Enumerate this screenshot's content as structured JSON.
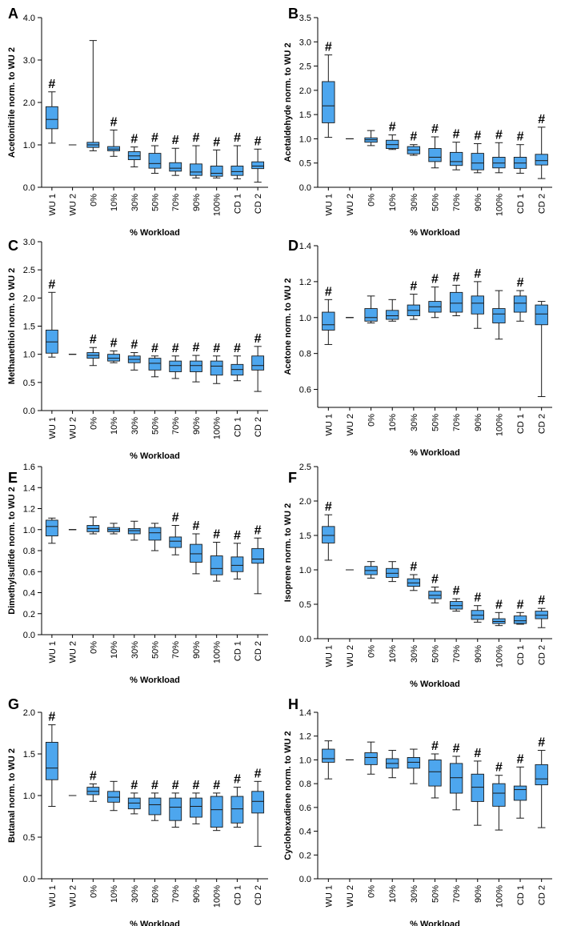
{
  "colors": {
    "box_fill": "#4da6ee",
    "box_stroke": "#1a1a1a",
    "axis": "#000000"
  },
  "chart_data": [
    {
      "panel": "A",
      "type": "box",
      "ylabel": "Acetonitrile norm. to WU 2",
      "xlabel": "% Workload",
      "ylim": [
        0,
        4
      ],
      "yticks": [
        "0.0",
        "1.0",
        "2.0",
        "3.0",
        "4.0"
      ],
      "categories": [
        "WU 1",
        "WU 2",
        "0%",
        "10%",
        "30%",
        "50%",
        "70%",
        "90%",
        "100%",
        "CD 1",
        "CD 2"
      ],
      "boxes": [
        {
          "min": 1.04,
          "q1": 1.38,
          "median": 1.6,
          "q3": 1.9,
          "max": 2.25,
          "sig": true
        },
        {
          "min": 1.0,
          "q1": 1.0,
          "median": 1.0,
          "q3": 1.0,
          "max": 1.0,
          "sig": false
        },
        {
          "min": 0.86,
          "q1": 0.94,
          "median": 1.0,
          "q3": 1.06,
          "max": 3.46,
          "sig": false
        },
        {
          "min": 0.73,
          "q1": 0.86,
          "median": 0.9,
          "q3": 0.96,
          "max": 1.35,
          "sig": true
        },
        {
          "min": 0.48,
          "q1": 0.65,
          "median": 0.74,
          "q3": 0.84,
          "max": 0.95,
          "sig": true
        },
        {
          "min": 0.33,
          "q1": 0.45,
          "median": 0.56,
          "q3": 0.8,
          "max": 0.98,
          "sig": true
        },
        {
          "min": 0.28,
          "q1": 0.38,
          "median": 0.45,
          "q3": 0.58,
          "max": 0.92,
          "sig": true
        },
        {
          "min": 0.22,
          "q1": 0.28,
          "median": 0.36,
          "q3": 0.55,
          "max": 0.98,
          "sig": true
        },
        {
          "min": 0.22,
          "q1": 0.26,
          "median": 0.33,
          "q3": 0.5,
          "max": 0.88,
          "sig": true
        },
        {
          "min": 0.2,
          "q1": 0.28,
          "median": 0.37,
          "q3": 0.5,
          "max": 0.98,
          "sig": true
        },
        {
          "min": 0.12,
          "q1": 0.44,
          "median": 0.5,
          "q3": 0.6,
          "max": 0.9,
          "sig": true
        }
      ]
    },
    {
      "panel": "B",
      "type": "box",
      "ylabel": "Acetaldehyde norm. to WU 2",
      "xlabel": "% Workload",
      "ylim": [
        0,
        3.5
      ],
      "yticks": [
        "0.0",
        "0.5",
        "1.0",
        "1.5",
        "2.0",
        "2.5",
        "3.0",
        "3.5"
      ],
      "categories": [
        "WU 1",
        "WU 2",
        "0%",
        "10%",
        "30%",
        "50%",
        "70%",
        "90%",
        "100%",
        "CD 1",
        "CD 2"
      ],
      "boxes": [
        {
          "min": 1.03,
          "q1": 1.33,
          "median": 1.68,
          "q3": 2.18,
          "max": 2.73,
          "sig": true
        },
        {
          "min": 1.0,
          "q1": 1.0,
          "median": 1.0,
          "q3": 1.0,
          "max": 1.0,
          "sig": false
        },
        {
          "min": 0.86,
          "q1": 0.93,
          "median": 0.98,
          "q3": 1.02,
          "max": 1.17,
          "sig": false
        },
        {
          "min": 0.78,
          "q1": 0.8,
          "median": 0.88,
          "q3": 0.97,
          "max": 1.08,
          "sig": true
        },
        {
          "min": 0.66,
          "q1": 0.69,
          "median": 0.77,
          "q3": 0.84,
          "max": 0.88,
          "sig": true
        },
        {
          "min": 0.4,
          "q1": 0.53,
          "median": 0.62,
          "q3": 0.8,
          "max": 1.04,
          "sig": true
        },
        {
          "min": 0.36,
          "q1": 0.45,
          "median": 0.53,
          "q3": 0.72,
          "max": 0.93,
          "sig": true
        },
        {
          "min": 0.3,
          "q1": 0.36,
          "median": 0.5,
          "q3": 0.7,
          "max": 0.9,
          "sig": true
        },
        {
          "min": 0.3,
          "q1": 0.4,
          "median": 0.5,
          "q3": 0.62,
          "max": 0.92,
          "sig": true
        },
        {
          "min": 0.29,
          "q1": 0.39,
          "median": 0.5,
          "q3": 0.62,
          "max": 0.88,
          "sig": true
        },
        {
          "min": 0.18,
          "q1": 0.46,
          "median": 0.55,
          "q3": 0.68,
          "max": 1.24,
          "sig": true
        }
      ]
    },
    {
      "panel": "C",
      "type": "box",
      "ylabel": "Methanethiol norm. to WU 2",
      "xlabel": "% Workload",
      "ylim": [
        0,
        3
      ],
      "yticks": [
        "0.0",
        "0.5",
        "1.0",
        "1.5",
        "2.0",
        "2.5",
        "3.0"
      ],
      "categories": [
        "WU 1",
        "WU 2",
        "0%",
        "10%",
        "30%",
        "50%",
        "70%",
        "90%",
        "100%",
        "CD 1",
        "CD 2"
      ],
      "boxes": [
        {
          "min": 0.95,
          "q1": 1.02,
          "median": 1.22,
          "q3": 1.43,
          "max": 2.1,
          "sig": true
        },
        {
          "min": 1.0,
          "q1": 1.0,
          "median": 1.0,
          "q3": 1.0,
          "max": 1.0,
          "sig": false
        },
        {
          "min": 0.8,
          "q1": 0.93,
          "median": 0.98,
          "q3": 1.03,
          "max": 1.12,
          "sig": true
        },
        {
          "min": 0.85,
          "q1": 0.88,
          "median": 0.93,
          "q3": 1.0,
          "max": 1.06,
          "sig": true
        },
        {
          "min": 0.72,
          "q1": 0.85,
          "median": 0.91,
          "q3": 0.97,
          "max": 1.03,
          "sig": true
        },
        {
          "min": 0.6,
          "q1": 0.72,
          "median": 0.84,
          "q3": 0.93,
          "max": 0.97,
          "sig": true
        },
        {
          "min": 0.57,
          "q1": 0.69,
          "median": 0.8,
          "q3": 0.88,
          "max": 0.97,
          "sig": true
        },
        {
          "min": 0.51,
          "q1": 0.69,
          "median": 0.8,
          "q3": 0.88,
          "max": 0.98,
          "sig": true
        },
        {
          "min": 0.48,
          "q1": 0.63,
          "median": 0.79,
          "q3": 0.88,
          "max": 0.97,
          "sig": true
        },
        {
          "min": 0.53,
          "q1": 0.63,
          "median": 0.73,
          "q3": 0.82,
          "max": 0.97,
          "sig": true
        },
        {
          "min": 0.34,
          "q1": 0.72,
          "median": 0.8,
          "q3": 0.97,
          "max": 1.14,
          "sig": true
        }
      ]
    },
    {
      "panel": "D",
      "type": "box",
      "ylabel": "Acetone norm. to WU 2",
      "xlabel": "% Workload",
      "ylim": [
        0.5,
        1.4
      ],
      "yticks": [
        "0.6",
        "0.8",
        "1.0",
        "1.2",
        "1.4"
      ],
      "ytick_start": 0.6,
      "ytick_step": 0.2,
      "categories": [
        "WU 1",
        "WU 2",
        "0%",
        "10%",
        "30%",
        "50%",
        "70%",
        "90%",
        "100%",
        "CD 1",
        "CD 2"
      ],
      "boxes": [
        {
          "min": 0.85,
          "q1": 0.93,
          "median": 0.96,
          "q3": 1.03,
          "max": 1.1,
          "sig": true
        },
        {
          "min": 1.0,
          "q1": 1.0,
          "median": 1.0,
          "q3": 1.0,
          "max": 1.0,
          "sig": false
        },
        {
          "min": 0.97,
          "q1": 0.98,
          "median": 1.0,
          "q3": 1.05,
          "max": 1.12,
          "sig": false
        },
        {
          "min": 0.98,
          "q1": 0.99,
          "median": 1.01,
          "q3": 1.04,
          "max": 1.1,
          "sig": false
        },
        {
          "min": 0.99,
          "q1": 1.01,
          "median": 1.04,
          "q3": 1.07,
          "max": 1.13,
          "sig": true
        },
        {
          "min": 1.0,
          "q1": 1.03,
          "median": 1.06,
          "q3": 1.09,
          "max": 1.17,
          "sig": true
        },
        {
          "min": 1.01,
          "q1": 1.03,
          "median": 1.08,
          "q3": 1.14,
          "max": 1.18,
          "sig": true
        },
        {
          "min": 0.94,
          "q1": 1.02,
          "median": 1.08,
          "q3": 1.12,
          "max": 1.2,
          "sig": true
        },
        {
          "min": 0.88,
          "q1": 0.97,
          "median": 1.02,
          "q3": 1.05,
          "max": 1.15,
          "sig": false
        },
        {
          "min": 0.98,
          "q1": 1.03,
          "median": 1.08,
          "q3": 1.12,
          "max": 1.15,
          "sig": true
        },
        {
          "min": 0.56,
          "q1": 0.96,
          "median": 1.02,
          "q3": 1.07,
          "max": 1.09,
          "sig": false
        }
      ]
    },
    {
      "panel": "E",
      "type": "box",
      "ylabel": "Dimethylsulfide norm. to WU 2",
      "xlabel": "% Workload",
      "ylim": [
        0,
        1.6
      ],
      "yticks": [
        "0.0",
        "0.2",
        "0.4",
        "0.6",
        "0.8",
        "1.0",
        "1.2",
        "1.4",
        "1.6"
      ],
      "categories": [
        "WU 1",
        "WU 2",
        "0%",
        "10%",
        "30%",
        "50%",
        "70%",
        "90%",
        "100%",
        "CD 1",
        "CD 2"
      ],
      "boxes": [
        {
          "min": 0.87,
          "q1": 0.94,
          "median": 1.03,
          "q3": 1.09,
          "max": 1.11,
          "sig": false
        },
        {
          "min": 1.0,
          "q1": 1.0,
          "median": 1.0,
          "q3": 1.0,
          "max": 1.0,
          "sig": false
        },
        {
          "min": 0.96,
          "q1": 0.98,
          "median": 1.01,
          "q3": 1.04,
          "max": 1.12,
          "sig": false
        },
        {
          "min": 0.96,
          "q1": 0.98,
          "median": 1.0,
          "q3": 1.02,
          "max": 1.06,
          "sig": false
        },
        {
          "min": 0.9,
          "q1": 0.96,
          "median": 0.99,
          "q3": 1.01,
          "max": 1.08,
          "sig": false
        },
        {
          "min": 0.8,
          "q1": 0.9,
          "median": 0.97,
          "q3": 1.02,
          "max": 1.06,
          "sig": false
        },
        {
          "min": 0.76,
          "q1": 0.83,
          "median": 0.89,
          "q3": 0.93,
          "max": 1.04,
          "sig": true
        },
        {
          "min": 0.58,
          "q1": 0.69,
          "median": 0.77,
          "q3": 0.86,
          "max": 0.96,
          "sig": true
        },
        {
          "min": 0.51,
          "q1": 0.57,
          "median": 0.63,
          "q3": 0.75,
          "max": 0.88,
          "sig": true
        },
        {
          "min": 0.53,
          "q1": 0.6,
          "median": 0.66,
          "q3": 0.74,
          "max": 0.87,
          "sig": true
        },
        {
          "min": 0.39,
          "q1": 0.68,
          "median": 0.72,
          "q3": 0.82,
          "max": 0.92,
          "sig": true
        }
      ]
    },
    {
      "panel": "F",
      "type": "box",
      "ylabel": "Isoprene norm. to WU 2",
      "xlabel": "% Workload",
      "ylim": [
        0,
        2.5
      ],
      "yticks": [
        "0.0",
        "0.5",
        "1.0",
        "1.5",
        "2.0",
        "2.5"
      ],
      "categories": [
        "WU 1",
        "WU 2",
        "0%",
        "10%",
        "30%",
        "50%",
        "70%",
        "90%",
        "100%",
        "CD 1",
        "CD 2"
      ],
      "boxes": [
        {
          "min": 1.14,
          "q1": 1.39,
          "median": 1.5,
          "q3": 1.63,
          "max": 1.8,
          "sig": true
        },
        {
          "min": 1.0,
          "q1": 1.0,
          "median": 1.0,
          "q3": 1.0,
          "max": 1.0,
          "sig": false
        },
        {
          "min": 0.88,
          "q1": 0.93,
          "median": 0.99,
          "q3": 1.05,
          "max": 1.12,
          "sig": false
        },
        {
          "min": 0.83,
          "q1": 0.89,
          "median": 0.95,
          "q3": 1.02,
          "max": 1.12,
          "sig": false
        },
        {
          "min": 0.7,
          "q1": 0.76,
          "median": 0.81,
          "q3": 0.87,
          "max": 0.93,
          "sig": true
        },
        {
          "min": 0.52,
          "q1": 0.58,
          "median": 0.63,
          "q3": 0.69,
          "max": 0.75,
          "sig": true
        },
        {
          "min": 0.4,
          "q1": 0.43,
          "median": 0.48,
          "q3": 0.54,
          "max": 0.58,
          "sig": true
        },
        {
          "min": 0.24,
          "q1": 0.28,
          "median": 0.34,
          "q3": 0.41,
          "max": 0.48,
          "sig": true
        },
        {
          "min": 0.19,
          "q1": 0.22,
          "median": 0.25,
          "q3": 0.29,
          "max": 0.38,
          "sig": true
        },
        {
          "min": 0.21,
          "q1": 0.22,
          "median": 0.26,
          "q3": 0.33,
          "max": 0.38,
          "sig": true
        },
        {
          "min": 0.16,
          "q1": 0.29,
          "median": 0.34,
          "q3": 0.4,
          "max": 0.44,
          "sig": true
        }
      ]
    },
    {
      "panel": "G",
      "type": "box",
      "ylabel": "Butanal norm. to WU 2",
      "xlabel": "% Workload",
      "ylim": [
        0,
        2
      ],
      "yticks": [
        "0.0",
        "0.5",
        "1.0",
        "1.5",
        "2.0"
      ],
      "categories": [
        "WU 1",
        "WU 2",
        "0%",
        "10%",
        "30%",
        "50%",
        "70%",
        "90%",
        "100%",
        "CD 1",
        "CD 2"
      ],
      "boxes": [
        {
          "min": 0.87,
          "q1": 1.19,
          "median": 1.33,
          "q3": 1.64,
          "max": 1.85,
          "sig": true
        },
        {
          "min": 1.0,
          "q1": 1.0,
          "median": 1.0,
          "q3": 1.0,
          "max": 1.0,
          "sig": false
        },
        {
          "min": 0.93,
          "q1": 1.01,
          "median": 1.05,
          "q3": 1.1,
          "max": 1.14,
          "sig": true
        },
        {
          "min": 0.82,
          "q1": 0.92,
          "median": 0.98,
          "q3": 1.05,
          "max": 1.17,
          "sig": false
        },
        {
          "min": 0.78,
          "q1": 0.84,
          "median": 0.91,
          "q3": 0.97,
          "max": 1.03,
          "sig": true
        },
        {
          "min": 0.7,
          "q1": 0.77,
          "median": 0.89,
          "q3": 0.97,
          "max": 1.03,
          "sig": true
        },
        {
          "min": 0.62,
          "q1": 0.7,
          "median": 0.86,
          "q3": 0.97,
          "max": 1.03,
          "sig": true
        },
        {
          "min": 0.66,
          "q1": 0.74,
          "median": 0.87,
          "q3": 0.97,
          "max": 1.03,
          "sig": true
        },
        {
          "min": 0.58,
          "q1": 0.62,
          "median": 0.83,
          "q3": 0.99,
          "max": 1.03,
          "sig": true
        },
        {
          "min": 0.62,
          "q1": 0.67,
          "median": 0.84,
          "q3": 0.99,
          "max": 1.1,
          "sig": true
        },
        {
          "min": 0.39,
          "q1": 0.79,
          "median": 0.93,
          "q3": 1.05,
          "max": 1.17,
          "sig": true
        }
      ]
    },
    {
      "panel": "H",
      "type": "box",
      "ylabel": "Cyclohexadiene norm. to WU 2",
      "xlabel": "% Workload",
      "ylim": [
        0,
        1.4
      ],
      "yticks": [
        "0.0",
        "0.2",
        "0.4",
        "0.6",
        "0.8",
        "1.0",
        "1.2",
        "1.4"
      ],
      "categories": [
        "WU 1",
        "WU 2",
        "0%",
        "10%",
        "30%",
        "50%",
        "70%",
        "90%",
        "100%",
        "CD 1",
        "CD 2"
      ],
      "boxes": [
        {
          "min": 0.84,
          "q1": 0.98,
          "median": 1.01,
          "q3": 1.09,
          "max": 1.16,
          "sig": false
        },
        {
          "min": 1.0,
          "q1": 1.0,
          "median": 1.0,
          "q3": 1.0,
          "max": 1.0,
          "sig": false
        },
        {
          "min": 0.88,
          "q1": 0.96,
          "median": 1.02,
          "q3": 1.06,
          "max": 1.15,
          "sig": false
        },
        {
          "min": 0.85,
          "q1": 0.93,
          "median": 0.97,
          "q3": 1.01,
          "max": 1.08,
          "sig": false
        },
        {
          "min": 0.8,
          "q1": 0.93,
          "median": 0.98,
          "q3": 1.02,
          "max": 1.09,
          "sig": false
        },
        {
          "min": 0.68,
          "q1": 0.78,
          "median": 0.9,
          "q3": 1.0,
          "max": 1.05,
          "sig": true
        },
        {
          "min": 0.58,
          "q1": 0.72,
          "median": 0.85,
          "q3": 0.97,
          "max": 1.03,
          "sig": true
        },
        {
          "min": 0.45,
          "q1": 0.65,
          "median": 0.77,
          "q3": 0.88,
          "max": 0.99,
          "sig": true
        },
        {
          "min": 0.41,
          "q1": 0.61,
          "median": 0.72,
          "q3": 0.8,
          "max": 0.87,
          "sig": true
        },
        {
          "min": 0.51,
          "q1": 0.66,
          "median": 0.75,
          "q3": 0.78,
          "max": 0.94,
          "sig": true
        },
        {
          "min": 0.43,
          "q1": 0.79,
          "median": 0.84,
          "q3": 0.96,
          "max": 1.08,
          "sig": true
        }
      ]
    }
  ]
}
